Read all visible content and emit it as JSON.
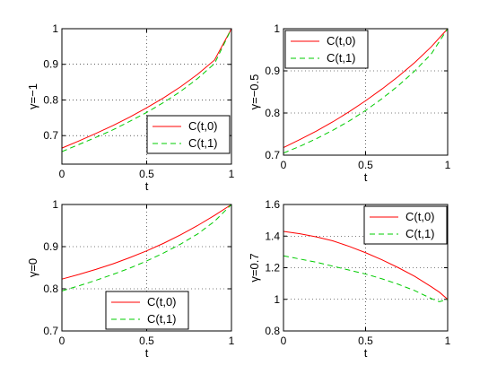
{
  "chart_data": [
    {
      "type": "line",
      "xlabel": "t",
      "ylabel": "γ=−1",
      "xlim": [
        0,
        1
      ],
      "ylim": [
        0.62,
        1.0
      ],
      "xticks": [
        "0",
        "0.5",
        "1"
      ],
      "yticks": [
        "0.7",
        "0.8",
        "0.9",
        "1"
      ],
      "grid": true,
      "legend_position": "bottom-right",
      "x": [
        0,
        0.1,
        0.2,
        0.3,
        0.4,
        0.5,
        0.6,
        0.7,
        0.8,
        0.9,
        1.0
      ],
      "series": [
        {
          "name": "C(t,0)",
          "color": "#ff0000",
          "style": "solid",
          "values": [
            0.665,
            0.685,
            0.706,
            0.728,
            0.752,
            0.778,
            0.806,
            0.837,
            0.872,
            0.912,
            1.0
          ]
        },
        {
          "name": "C(t,1)",
          "color": "#00cc00",
          "style": "dashed",
          "values": [
            0.655,
            0.675,
            0.695,
            0.716,
            0.74,
            0.765,
            0.793,
            0.824,
            0.86,
            0.902,
            1.0
          ]
        }
      ]
    },
    {
      "type": "line",
      "xlabel": "t",
      "ylabel": "γ=−0.5",
      "xlim": [
        0,
        1
      ],
      "ylim": [
        0.7,
        1.0
      ],
      "xticks": [
        "0",
        "0.5",
        "1"
      ],
      "yticks": [
        "0.7",
        "0.8",
        "0.9",
        "1"
      ],
      "grid": true,
      "legend_position": "top-left",
      "x": [
        0,
        0.1,
        0.2,
        0.3,
        0.4,
        0.5,
        0.6,
        0.7,
        0.8,
        0.9,
        1.0
      ],
      "series": [
        {
          "name": "C(t,0)",
          "color": "#ff0000",
          "style": "solid",
          "values": [
            0.718,
            0.737,
            0.757,
            0.779,
            0.803,
            0.829,
            0.857,
            0.887,
            0.92,
            0.957,
            1.0
          ]
        },
        {
          "name": "C(t,1)",
          "color": "#00cc00",
          "style": "dashed",
          "values": [
            0.705,
            0.721,
            0.739,
            0.759,
            0.781,
            0.806,
            0.834,
            0.865,
            0.9,
            0.94,
            1.0
          ]
        }
      ]
    },
    {
      "type": "line",
      "xlabel": "t",
      "ylabel": "γ=0",
      "xlim": [
        0,
        1
      ],
      "ylim": [
        0.7,
        1.0
      ],
      "xticks": [
        "0",
        "0.5",
        "1"
      ],
      "yticks": [
        "0.7",
        "0.8",
        "0.9",
        "1"
      ],
      "grid": true,
      "legend_position": "bottom-center",
      "x": [
        0,
        0.1,
        0.2,
        0.3,
        0.4,
        0.5,
        0.6,
        0.7,
        0.8,
        0.9,
        1.0
      ],
      "series": [
        {
          "name": "C(t,0)",
          "color": "#ff0000",
          "style": "solid",
          "values": [
            0.823,
            0.834,
            0.846,
            0.859,
            0.874,
            0.89,
            0.908,
            0.928,
            0.95,
            0.974,
            1.0
          ]
        },
        {
          "name": "C(t,1)",
          "color": "#00cc00",
          "style": "dashed",
          "values": [
            0.795,
            0.807,
            0.82,
            0.834,
            0.849,
            0.866,
            0.885,
            0.906,
            0.93,
            0.96,
            1.0
          ]
        }
      ]
    },
    {
      "type": "line",
      "xlabel": "t",
      "ylabel": "γ=0.7",
      "xlim": [
        0,
        1
      ],
      "ylim": [
        0.8,
        1.6
      ],
      "xticks": [
        "0",
        "0.5",
        "1"
      ],
      "yticks": [
        "0.8",
        "1",
        "1.2",
        "1.4",
        "1.6"
      ],
      "grid": true,
      "legend_position": "top-right",
      "x": [
        0,
        0.1,
        0.2,
        0.3,
        0.4,
        0.5,
        0.6,
        0.7,
        0.8,
        0.9,
        0.95,
        1.0
      ],
      "series": [
        {
          "name": "C(t,0)",
          "color": "#ff0000",
          "style": "solid",
          "values": [
            1.43,
            1.415,
            1.395,
            1.37,
            1.335,
            1.295,
            1.25,
            1.2,
            1.145,
            1.08,
            1.045,
            1.0
          ]
        },
        {
          "name": "C(t,1)",
          "color": "#00cc00",
          "style": "dashed",
          "values": [
            1.275,
            1.255,
            1.235,
            1.21,
            1.185,
            1.16,
            1.13,
            1.095,
            1.055,
            1.005,
            0.985,
            1.0
          ]
        }
      ]
    }
  ]
}
